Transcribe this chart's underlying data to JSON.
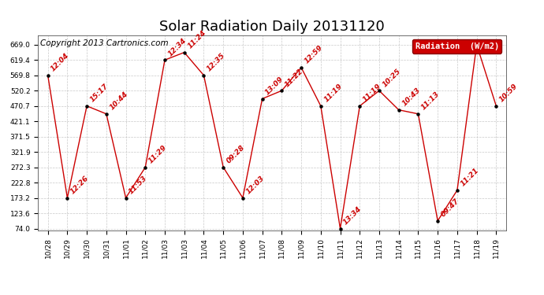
{
  "title": "Solar Radiation Daily 20131120",
  "copyright": "Copyright 2013 Cartronics.com",
  "legend_label": "Radiation  (W/m2)",
  "legend_bg": "#cc0000",
  "legend_fg": "#ffffff",
  "background_color": "#ffffff",
  "plot_bg": "#ffffff",
  "grid_color": "#bbbbbb",
  "line_color": "#cc0000",
  "marker_color": "#000000",
  "label_color": "#cc0000",
  "x_labels": [
    "10/28",
    "10/29",
    "10/30",
    "10/31",
    "11/01",
    "11/02",
    "11/03",
    "11/03",
    "11/04",
    "11/05",
    "11/06",
    "11/07",
    "11/08",
    "11/09",
    "11/10",
    "11/11",
    "11/12",
    "11/13",
    "11/14",
    "11/15",
    "11/16",
    "11/17",
    "11/18",
    "11/19"
  ],
  "values": [
    569.8,
    173.2,
    470.7,
    445.0,
    173.2,
    272.3,
    619.4,
    644.0,
    569.8,
    272.3,
    173.2,
    494.0,
    520.2,
    595.0,
    470.7,
    74.0,
    470.7,
    520.2,
    458.0,
    445.0,
    99.0,
    198.0,
    669.0,
    470.7
  ],
  "time_labels": [
    "12:04",
    "12:26",
    "15:17",
    "10:44",
    "11:53",
    "11:29",
    "12:34",
    "11:24",
    "12:35",
    "09:28",
    "12:03",
    "13:09",
    "11:22",
    "12:59",
    "11:19",
    "13:34",
    "11:19",
    "10:25",
    "10:43",
    "11:13",
    "09:47",
    "11:21",
    "",
    "10:59"
  ],
  "ylim_min": 74.0,
  "ylim_max": 669.0,
  "yticks": [
    74.0,
    123.6,
    173.2,
    222.8,
    272.3,
    321.9,
    371.5,
    421.1,
    470.7,
    520.2,
    569.8,
    619.4,
    669.0
  ],
  "title_fontsize": 13,
  "label_fontsize": 6.5,
  "axis_fontsize": 6.5,
  "copyright_fontsize": 7.5
}
